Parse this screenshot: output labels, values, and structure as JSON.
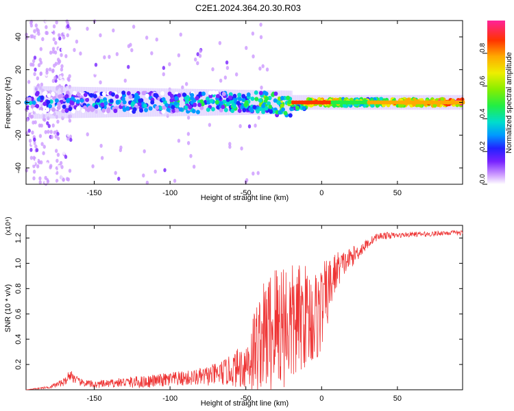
{
  "title": "C2E1.2024.364.20.30.R03",
  "chart_data": [
    {
      "type": "heatmap",
      "xlabel": "Height of straight line (km)",
      "ylabel": "Frequency (Hz)",
      "xlim": [
        -195,
        93
      ],
      "ylim": [
        -50,
        50
      ],
      "x_ticks": [
        -150,
        -100,
        -50,
        0,
        50
      ],
      "y_ticks": [
        -40,
        -20,
        0,
        20,
        40
      ],
      "colorbar": {
        "label": "Normalized spectral amplitude",
        "range": [
          0,
          1
        ],
        "ticks": [
          0.0,
          0.2,
          0.4,
          0.6,
          0.8
        ]
      },
      "ridge": [
        {
          "x": -180,
          "freq": 0,
          "amp": 0.25
        },
        {
          "x": -150,
          "freq": 0,
          "amp": 0.3
        },
        {
          "x": -100,
          "freq": -2,
          "amp": 0.35
        },
        {
          "x": -50,
          "freq": 0,
          "amp": 0.45
        },
        {
          "x": -20,
          "freq": -3,
          "amp": 0.6
        },
        {
          "x": -10,
          "freq": 0,
          "amp": 0.85
        },
        {
          "x": 0,
          "freq": 0,
          "amp": 0.85
        },
        {
          "x": 25,
          "freq": 0,
          "amp": 0.6
        },
        {
          "x": 50,
          "freq": -1,
          "amp": 0.8
        },
        {
          "x": 90,
          "freq": -1,
          "amp": 0.95
        }
      ]
    },
    {
      "type": "line",
      "xlabel": "Height of straight line (km)",
      "ylabel": "SNR (10 * v/v)",
      "y_multiplier": "(x10⁴)",
      "xlim": [
        -195,
        93
      ],
      "ylim": [
        0,
        1.3
      ],
      "x_ticks": [
        -150,
        -100,
        -50,
        0,
        50
      ],
      "y_ticks": [
        0.2,
        0.4,
        0.6,
        0.8,
        1.0,
        1.2
      ],
      "series": [
        {
          "color": "#ee3333",
          "x": [
            -195,
            -180,
            -170,
            -166,
            -160,
            -150,
            -140,
            -130,
            -120,
            -110,
            -100,
            -90,
            -80,
            -70,
            -60,
            -50,
            -45,
            -40,
            -35,
            -30,
            -25,
            -20,
            -15,
            -10,
            -5,
            0,
            5,
            10,
            15,
            20,
            25,
            30,
            35,
            40,
            50,
            60,
            70,
            80,
            93
          ],
          "values": [
            0.0,
            0.02,
            0.06,
            0.12,
            0.06,
            0.04,
            0.05,
            0.06,
            0.06,
            0.07,
            0.08,
            0.09,
            0.1,
            0.12,
            0.15,
            0.2,
            0.3,
            0.4,
            0.45,
            0.5,
            0.55,
            0.5,
            0.55,
            0.6,
            0.55,
            0.65,
            0.8,
            0.95,
            1.0,
            1.05,
            1.1,
            1.15,
            1.2,
            1.22,
            1.22,
            1.23,
            1.23,
            1.24,
            1.24
          ],
          "noise": [
            0,
            0.01,
            0.03,
            0.05,
            0.03,
            0.03,
            0.03,
            0.04,
            0.05,
            0.05,
            0.06,
            0.06,
            0.07,
            0.09,
            0.12,
            0.2,
            0.35,
            0.4,
            0.5,
            0.55,
            0.55,
            0.5,
            0.45,
            0.4,
            0.4,
            0.35,
            0.25,
            0.15,
            0.1,
            0.08,
            0.06,
            0.04,
            0.03,
            0.03,
            0.02,
            0.02,
            0.02,
            0.02,
            0.02
          ]
        }
      ]
    }
  ]
}
